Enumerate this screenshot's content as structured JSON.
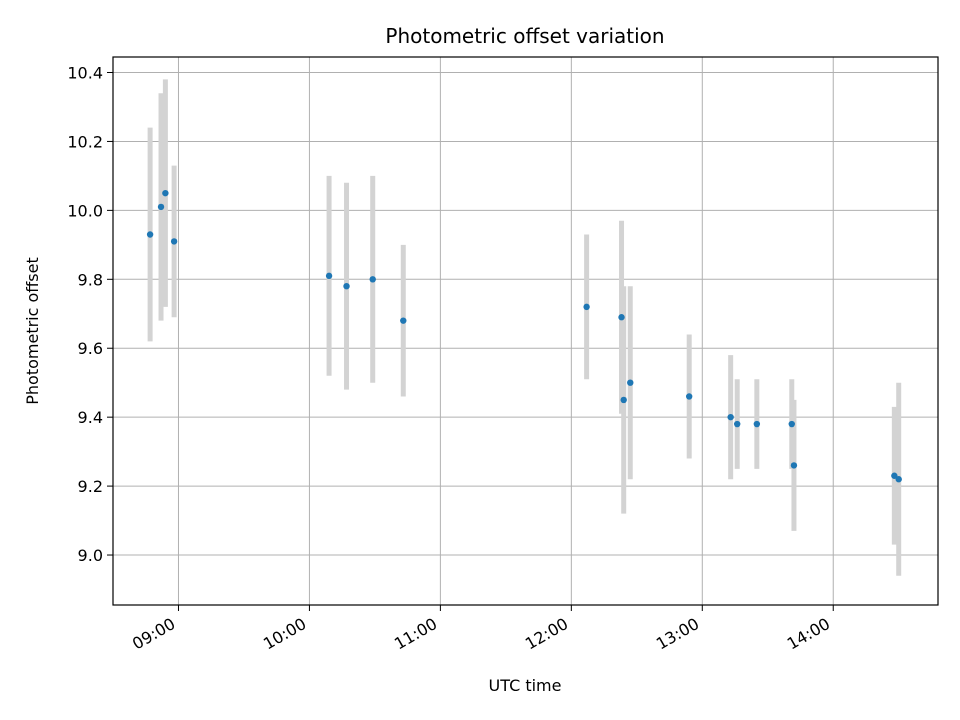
{
  "chart_data": {
    "type": "scatter",
    "title": "Photometric offset variation",
    "xlabel": "UTC time",
    "ylabel": "Photometric offset",
    "x_format": "HH:MM",
    "xlim": [
      "08:30",
      "14:48"
    ],
    "ylim": [
      8.855,
      10.445
    ],
    "x_ticks": [
      "09:00",
      "10:00",
      "11:00",
      "12:00",
      "13:00",
      "14:00"
    ],
    "y_ticks": [
      9.0,
      9.2,
      9.4,
      9.6,
      9.8,
      10.0,
      10.2,
      10.4
    ],
    "y_tick_labels": [
      "9.0",
      "9.2",
      "9.4",
      "9.6",
      "9.8",
      "10.0",
      "10.2",
      "10.4"
    ],
    "grid": true,
    "marker_color": "#1f77b4",
    "errorbar_color": "#d3d3d3",
    "points": [
      {
        "x": "08:47",
        "y": 9.93,
        "err": 0.31
      },
      {
        "x": "08:52",
        "y": 10.01,
        "err": 0.33
      },
      {
        "x": "08:54",
        "y": 10.05,
        "err": 0.33
      },
      {
        "x": "08:58",
        "y": 9.91,
        "err": 0.22
      },
      {
        "x": "10:09",
        "y": 9.81,
        "err": 0.29
      },
      {
        "x": "10:17",
        "y": 9.78,
        "err": 0.3
      },
      {
        "x": "10:29",
        "y": 9.8,
        "err": 0.3
      },
      {
        "x": "10:43",
        "y": 9.68,
        "err": 0.22
      },
      {
        "x": "12:07",
        "y": 9.72,
        "err": 0.21
      },
      {
        "x": "12:23",
        "y": 9.69,
        "err": 0.28
      },
      {
        "x": "12:24",
        "y": 9.45,
        "err": 0.33
      },
      {
        "x": "12:27",
        "y": 9.5,
        "err": 0.28
      },
      {
        "x": "12:54",
        "y": 9.46,
        "err": 0.18
      },
      {
        "x": "13:13",
        "y": 9.4,
        "err": 0.18
      },
      {
        "x": "13:16",
        "y": 9.38,
        "err": 0.13
      },
      {
        "x": "13:25",
        "y": 9.38,
        "err": 0.13
      },
      {
        "x": "13:41",
        "y": 9.38,
        "err": 0.13
      },
      {
        "x": "13:42",
        "y": 9.26,
        "err": 0.19
      },
      {
        "x": "14:28",
        "y": 9.23,
        "err": 0.2
      },
      {
        "x": "14:30",
        "y": 9.22,
        "err": 0.28
      }
    ]
  }
}
